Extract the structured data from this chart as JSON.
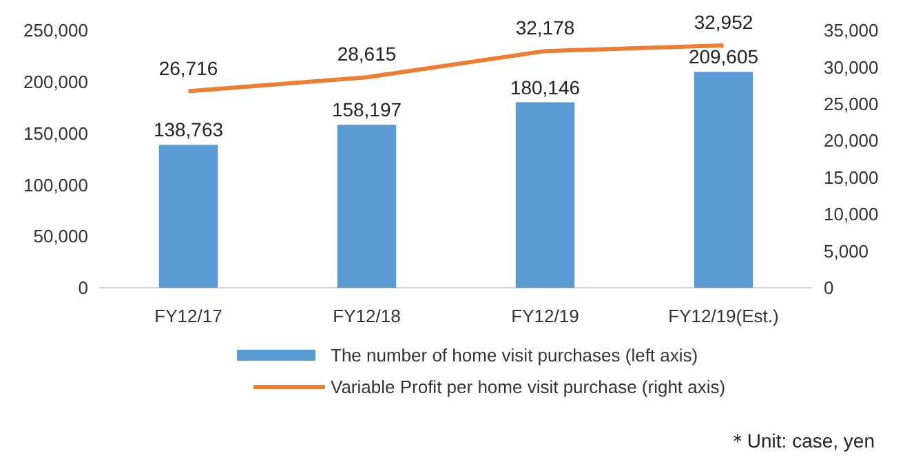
{
  "chart_data": {
    "type": "bar",
    "categories": [
      "FY12/17",
      "FY12/18",
      "FY12/19",
      "FY12/19(Est.)"
    ],
    "series": [
      {
        "name": "The number of home visit purchases (left axis)",
        "color": "#5b9bd5",
        "values": [
          138763,
          158197,
          180146,
          209605
        ],
        "value_labels": [
          "138,763",
          "158,197",
          "180,146",
          "209,605"
        ]
      },
      {
        "name": "Variable Profit per home visit purchase (right axis)",
        "type": "line",
        "axis": "y2",
        "color": "#ed7d31",
        "values": [
          26716,
          28615,
          32178,
          32952
        ],
        "value_labels": [
          "26,716",
          "28,615",
          "32,178",
          "32,952"
        ],
        "marker": "none"
      }
    ],
    "ylim": [
      0,
      250000
    ],
    "yticks": [
      0,
      {
        "value": 50000,
        "label": "50,000"
      },
      {
        "value": 100000,
        "label": "100,000"
      },
      {
        "value": 150000,
        "label": "150,000"
      },
      {
        "value": 200000,
        "label": "200,000"
      },
      {
        "value": 250000,
        "label": "250,000"
      }
    ],
    "y2lim": [
      0,
      35000
    ],
    "y2ticks": [
      0,
      {
        "value": 5000,
        "label": "5,000"
      },
      {
        "value": 10000,
        "label": "10,000"
      },
      {
        "value": 15000,
        "label": "15,000"
      },
      {
        "value": 20000,
        "label": "20,000"
      },
      {
        "value": 25000,
        "label": "25,000"
      },
      {
        "value": 30000,
        "label": "30,000"
      },
      {
        "value": 35000,
        "label": "35,000"
      }
    ],
    "grid": false,
    "legend": "bottom",
    "annotations": [
      "＊Unit: case, yen"
    ]
  }
}
